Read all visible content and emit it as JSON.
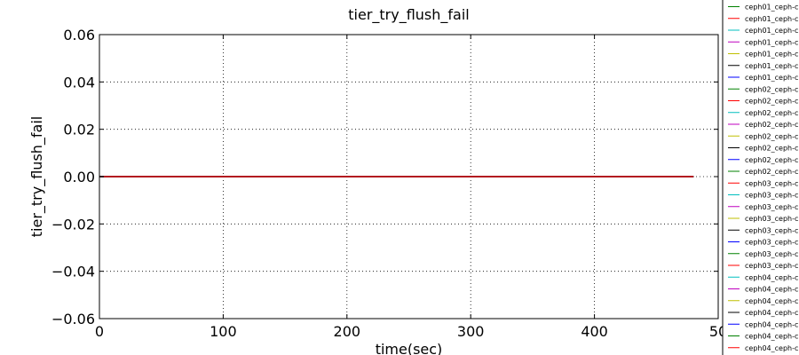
{
  "chart_data": {
    "type": "line",
    "title": "tier_try_flush_fail",
    "xlabel": "time(sec)",
    "ylabel": "tier_try_flush_fail",
    "xlim": [
      0,
      500
    ],
    "ylim": [
      -0.06,
      0.06
    ],
    "xticks": [
      "0",
      "100",
      "200",
      "300",
      "400",
      "50"
    ],
    "yticks": [
      "−0.06",
      "−0.04",
      "−0.02",
      "0.00",
      "0.02",
      "0.04",
      "0.06"
    ],
    "grid": true,
    "legend_position": "right, outside plot (clipped)",
    "x": [
      0,
      480
    ],
    "series": [
      {
        "name": "ceph01_ceph-c",
        "color": "#008000",
        "values": [
          0,
          0
        ]
      },
      {
        "name": "ceph01_ceph-c",
        "color": "#ff0000",
        "values": [
          0,
          0
        ]
      },
      {
        "name": "ceph01_ceph-c",
        "color": "#00bfbf",
        "values": [
          0,
          0
        ]
      },
      {
        "name": "ceph01_ceph-c",
        "color": "#bf00bf",
        "values": [
          0,
          0
        ]
      },
      {
        "name": "ceph01_ceph-c",
        "color": "#bfbf00",
        "values": [
          0,
          0
        ]
      },
      {
        "name": "ceph01_ceph-c",
        "color": "#000000",
        "values": [
          0,
          0
        ]
      },
      {
        "name": "ceph01_ceph-c",
        "color": "#0000ff",
        "values": [
          0,
          0
        ]
      },
      {
        "name": "ceph02_ceph-c",
        "color": "#008000",
        "values": [
          0,
          0
        ]
      },
      {
        "name": "ceph02_ceph-c",
        "color": "#ff0000",
        "values": [
          0,
          0
        ]
      },
      {
        "name": "ceph02_ceph-c",
        "color": "#00bfbf",
        "values": [
          0,
          0
        ]
      },
      {
        "name": "ceph02_ceph-c",
        "color": "#bf00bf",
        "values": [
          0,
          0
        ]
      },
      {
        "name": "ceph02_ceph-c",
        "color": "#bfbf00",
        "values": [
          0,
          0
        ]
      },
      {
        "name": "ceph02_ceph-c",
        "color": "#000000",
        "values": [
          0,
          0
        ]
      },
      {
        "name": "ceph02_ceph-c",
        "color": "#0000ff",
        "values": [
          0,
          0
        ]
      },
      {
        "name": "ceph02_ceph-c",
        "color": "#008000",
        "values": [
          0,
          0
        ]
      },
      {
        "name": "ceph03_ceph-c",
        "color": "#ff0000",
        "values": [
          0,
          0
        ]
      },
      {
        "name": "ceph03_ceph-c",
        "color": "#00bfbf",
        "values": [
          0,
          0
        ]
      },
      {
        "name": "ceph03_ceph-c",
        "color": "#bf00bf",
        "values": [
          0,
          0
        ]
      },
      {
        "name": "ceph03_ceph-c",
        "color": "#bfbf00",
        "values": [
          0,
          0
        ]
      },
      {
        "name": "ceph03_ceph-c",
        "color": "#000000",
        "values": [
          0,
          0
        ]
      },
      {
        "name": "ceph03_ceph-c",
        "color": "#0000ff",
        "values": [
          0,
          0
        ]
      },
      {
        "name": "ceph03_ceph-c",
        "color": "#008000",
        "values": [
          0,
          0
        ]
      },
      {
        "name": "ceph03_ceph-c",
        "color": "#ff0000",
        "values": [
          0,
          0
        ]
      },
      {
        "name": "ceph04_ceph-c",
        "color": "#00bfbf",
        "values": [
          0,
          0
        ]
      },
      {
        "name": "ceph04_ceph-c",
        "color": "#bf00bf",
        "values": [
          0,
          0
        ]
      },
      {
        "name": "ceph04_ceph-c",
        "color": "#bfbf00",
        "values": [
          0,
          0
        ]
      },
      {
        "name": "ceph04_ceph-c",
        "color": "#000000",
        "values": [
          0,
          0
        ]
      },
      {
        "name": "ceph04_ceph-c",
        "color": "#0000ff",
        "values": [
          0,
          0
        ]
      },
      {
        "name": "ceph04_ceph-c",
        "color": "#008000",
        "values": [
          0,
          0
        ]
      },
      {
        "name": "ceph04_ceph-c",
        "color": "#ff0000",
        "values": [
          0,
          0
        ]
      }
    ]
  }
}
